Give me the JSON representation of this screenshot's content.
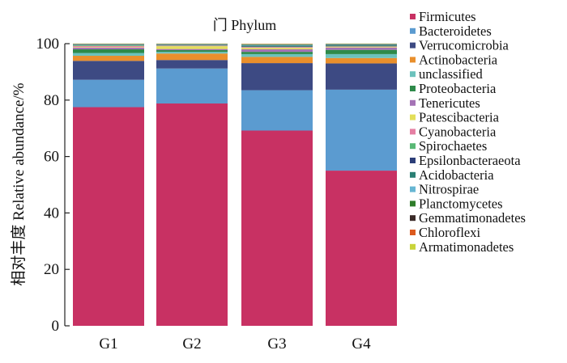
{
  "chart_data": {
    "type": "bar",
    "stacked": true,
    "title": "门 Phylum",
    "xlabel": "",
    "ylabel": "相对丰度 Relative abundance/%",
    "ylim": [
      0,
      100
    ],
    "yticks": [
      0,
      20,
      40,
      60,
      80,
      100
    ],
    "categories": [
      "G1",
      "G2",
      "G3",
      "G4"
    ],
    "legend_position": "right",
    "series": [
      {
        "name": "Firmicutes",
        "color": "#c83163",
        "values": [
          77.5,
          78.8,
          69.2,
          55.0
        ]
      },
      {
        "name": "Bacteroidetes",
        "color": "#5b9bd0",
        "values": [
          9.7,
          12.4,
          14.3,
          28.7
        ]
      },
      {
        "name": "Verrucomicrobia",
        "color": "#3d4a83",
        "values": [
          6.7,
          3.0,
          9.6,
          9.3
        ]
      },
      {
        "name": "Actinobacteria",
        "color": "#e98f2c",
        "values": [
          1.8,
          2.3,
          2.2,
          1.9
        ]
      },
      {
        "name": "unclassified",
        "color": "#6cc2bd",
        "values": [
          1.0,
          0.6,
          1.0,
          1.4
        ]
      },
      {
        "name": "Proteobacteria",
        "color": "#2e8a4a",
        "values": [
          1.3,
          0.6,
          0.8,
          1.5
        ]
      },
      {
        "name": "Tenericutes",
        "color": "#a473b5",
        "values": [
          0.6,
          0.4,
          0.9,
          0.8
        ]
      },
      {
        "name": "Patescibacteria",
        "color": "#e3df5a",
        "values": [
          0.2,
          1.0,
          0.5,
          0.2
        ]
      },
      {
        "name": "Cyanobacteria",
        "color": "#e57fa3",
        "values": [
          0.4,
          0.2,
          0.3,
          0.2
        ]
      },
      {
        "name": "Spirochaetes",
        "color": "#59b875",
        "values": [
          0.3,
          0.2,
          0.2,
          0.3
        ]
      },
      {
        "name": "Epsilonbacteraeota",
        "color": "#2c3e78",
        "values": [
          0.1,
          0.1,
          0.2,
          0.2
        ]
      },
      {
        "name": "Acidobacteria",
        "color": "#2a7f74",
        "values": [
          0.1,
          0.1,
          0.2,
          0.2
        ]
      },
      {
        "name": "Nitrospirae",
        "color": "#67b6d3",
        "values": [
          0.1,
          0.1,
          0.2,
          0.1
        ]
      },
      {
        "name": "Planctomycetes",
        "color": "#2f7d2a",
        "values": [
          0.1,
          0.1,
          0.1,
          0.1
        ]
      },
      {
        "name": "Gemmatimonadetes",
        "color": "#3a2a28",
        "values": [
          0.05,
          0.05,
          0.1,
          0.05
        ]
      },
      {
        "name": "Chloroflexi",
        "color": "#dc5a1e",
        "values": [
          0.05,
          0.05,
          0.1,
          0.05
        ]
      },
      {
        "name": "Armatimonadetes",
        "color": "#c9d43a",
        "values": [
          0.05,
          0.05,
          0.1,
          0.05
        ]
      }
    ]
  }
}
